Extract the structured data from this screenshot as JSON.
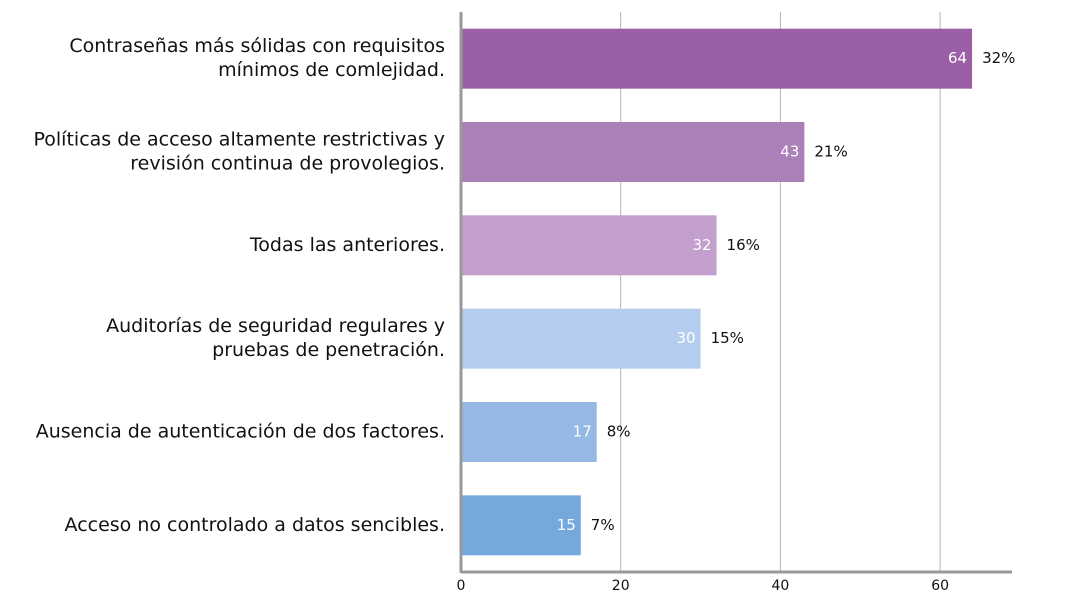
{
  "chart_data": {
    "type": "bar",
    "orientation": "horizontal",
    "categories": [
      [
        "Contraseñas más sólidas con requisitos",
        "mínimos de comlejidad."
      ],
      [
        "Políticas de acceso altamente restrictivas y",
        "revisión continua de provolegios."
      ],
      [
        "Todas las anteriores."
      ],
      [
        "Auditorías de seguridad regulares y",
        "pruebas de penetración."
      ],
      [
        "Ausencia de autenticación de dos factores."
      ],
      [
        "Acceso no controlado a datos sencibles."
      ]
    ],
    "values": [
      64,
      43,
      32,
      30,
      17,
      15
    ],
    "share_labels": [
      "32%",
      "21%",
      "16%",
      "15%",
      "8%",
      "7%"
    ],
    "colors": [
      "#9b5fa5",
      "#ab80b8",
      "#c29fcc",
      "#b4cdee",
      "#95b9e4",
      "#75a8dc"
    ],
    "xlim": [
      0,
      69
    ],
    "xticks": [
      0,
      20,
      40,
      60
    ],
    "grid": true
  }
}
